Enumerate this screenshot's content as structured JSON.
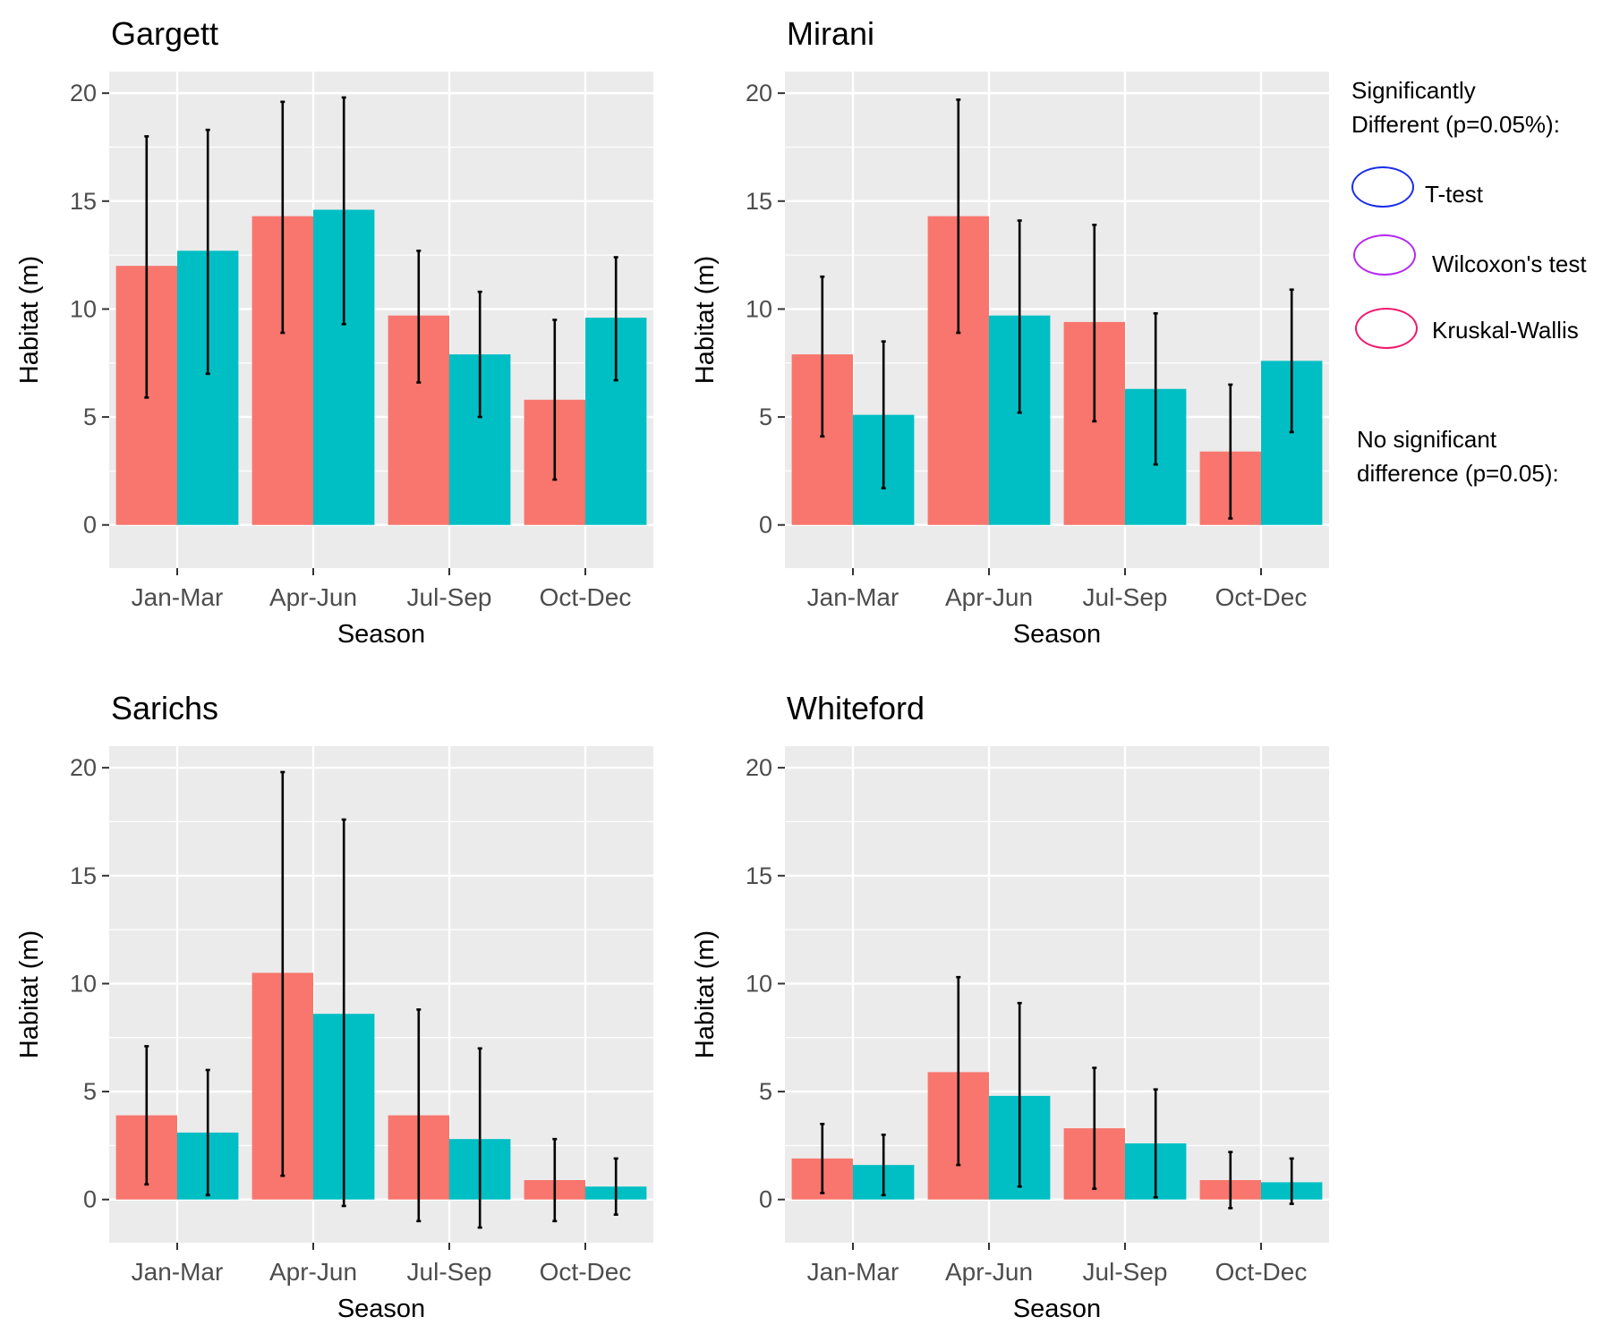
{
  "chart_data": [
    {
      "type": "bar",
      "title": "Gargett",
      "xlabel": "Season",
      "ylabel": "Habitat (m)",
      "categories": [
        "Jan-Mar",
        "Apr-Jun",
        "Jul-Sep",
        "Oct-Dec"
      ],
      "ylim": [
        -2,
        21
      ],
      "yticks": [
        0,
        5,
        10,
        15,
        20
      ],
      "grid": true,
      "series": [
        {
          "color": "#F8766D",
          "values": [
            12.0,
            14.3,
            9.7,
            5.8
          ],
          "err_low": [
            5.9,
            8.9,
            6.6,
            2.1
          ],
          "err_high": [
            18.0,
            19.6,
            12.7,
            9.5
          ]
        },
        {
          "color": "#00BFC4",
          "values": [
            12.7,
            14.6,
            7.9,
            9.6
          ],
          "err_low": [
            7.0,
            9.3,
            5.0,
            6.7
          ],
          "err_high": [
            18.3,
            19.8,
            10.8,
            12.4
          ]
        }
      ]
    },
    {
      "type": "bar",
      "title": "Mirani",
      "xlabel": "Season",
      "ylabel": "Habitat (m)",
      "categories": [
        "Jan-Mar",
        "Apr-Jun",
        "Jul-Sep",
        "Oct-Dec"
      ],
      "ylim": [
        -2,
        21
      ],
      "yticks": [
        0,
        5,
        10,
        15,
        20
      ],
      "grid": true,
      "series": [
        {
          "color": "#F8766D",
          "values": [
            7.9,
            14.3,
            9.4,
            3.4
          ],
          "err_low": [
            4.1,
            8.9,
            4.8,
            0.3
          ],
          "err_high": [
            11.5,
            19.7,
            13.9,
            6.5
          ]
        },
        {
          "color": "#00BFC4",
          "values": [
            5.1,
            9.7,
            6.3,
            7.6
          ],
          "err_low": [
            1.7,
            5.2,
            2.8,
            4.3
          ],
          "err_high": [
            8.5,
            14.1,
            9.8,
            10.9
          ]
        }
      ]
    },
    {
      "type": "bar",
      "title": "Sarichs",
      "xlabel": "Season",
      "ylabel": "Habitat (m)",
      "categories": [
        "Jan-Mar",
        "Apr-Jun",
        "Jul-Sep",
        "Oct-Dec"
      ],
      "ylim": [
        -2,
        21
      ],
      "yticks": [
        0,
        5,
        10,
        15,
        20
      ],
      "grid": true,
      "series": [
        {
          "color": "#F8766D",
          "values": [
            3.9,
            10.5,
            3.9,
            0.9
          ],
          "err_low": [
            0.7,
            1.1,
            -1.0,
            -1.0
          ],
          "err_high": [
            7.1,
            19.8,
            8.8,
            2.8
          ]
        },
        {
          "color": "#00BFC4",
          "values": [
            3.1,
            8.6,
            2.8,
            0.6
          ],
          "err_low": [
            0.2,
            -0.3,
            -1.3,
            -0.7
          ],
          "err_high": [
            6.0,
            17.6,
            7.0,
            1.9
          ]
        }
      ]
    },
    {
      "type": "bar",
      "title": "Whiteford",
      "xlabel": "Season",
      "ylabel": "Habitat (m)",
      "categories": [
        "Jan-Mar",
        "Apr-Jun",
        "Jul-Sep",
        "Oct-Dec"
      ],
      "ylim": [
        -2,
        21
      ],
      "yticks": [
        0,
        5,
        10,
        15,
        20
      ],
      "grid": true,
      "series": [
        {
          "color": "#F8766D",
          "values": [
            1.9,
            5.9,
            3.3,
            0.9
          ],
          "err_low": [
            0.3,
            1.6,
            0.5,
            -0.4
          ],
          "err_high": [
            3.5,
            10.3,
            6.1,
            2.2
          ]
        },
        {
          "color": "#00BFC4",
          "values": [
            1.6,
            4.8,
            2.6,
            0.8
          ],
          "err_low": [
            0.2,
            0.6,
            0.1,
            -0.2
          ],
          "err_high": [
            3.0,
            9.1,
            5.1,
            1.9
          ]
        }
      ]
    }
  ],
  "legend": {
    "sig_title_line1": "Significantly",
    "sig_title_line2": "Different (p=0.05%):",
    "items": [
      {
        "label": "T-test",
        "color": "#1A2EEB"
      },
      {
        "label": "Wilcoxon's test",
        "color": "#B22AF0"
      },
      {
        "label": "Kruskal-Wallis",
        "color": "#F0186E"
      }
    ],
    "nosig_line1": "No significant",
    "nosig_line2": "difference (p=0.05):"
  }
}
